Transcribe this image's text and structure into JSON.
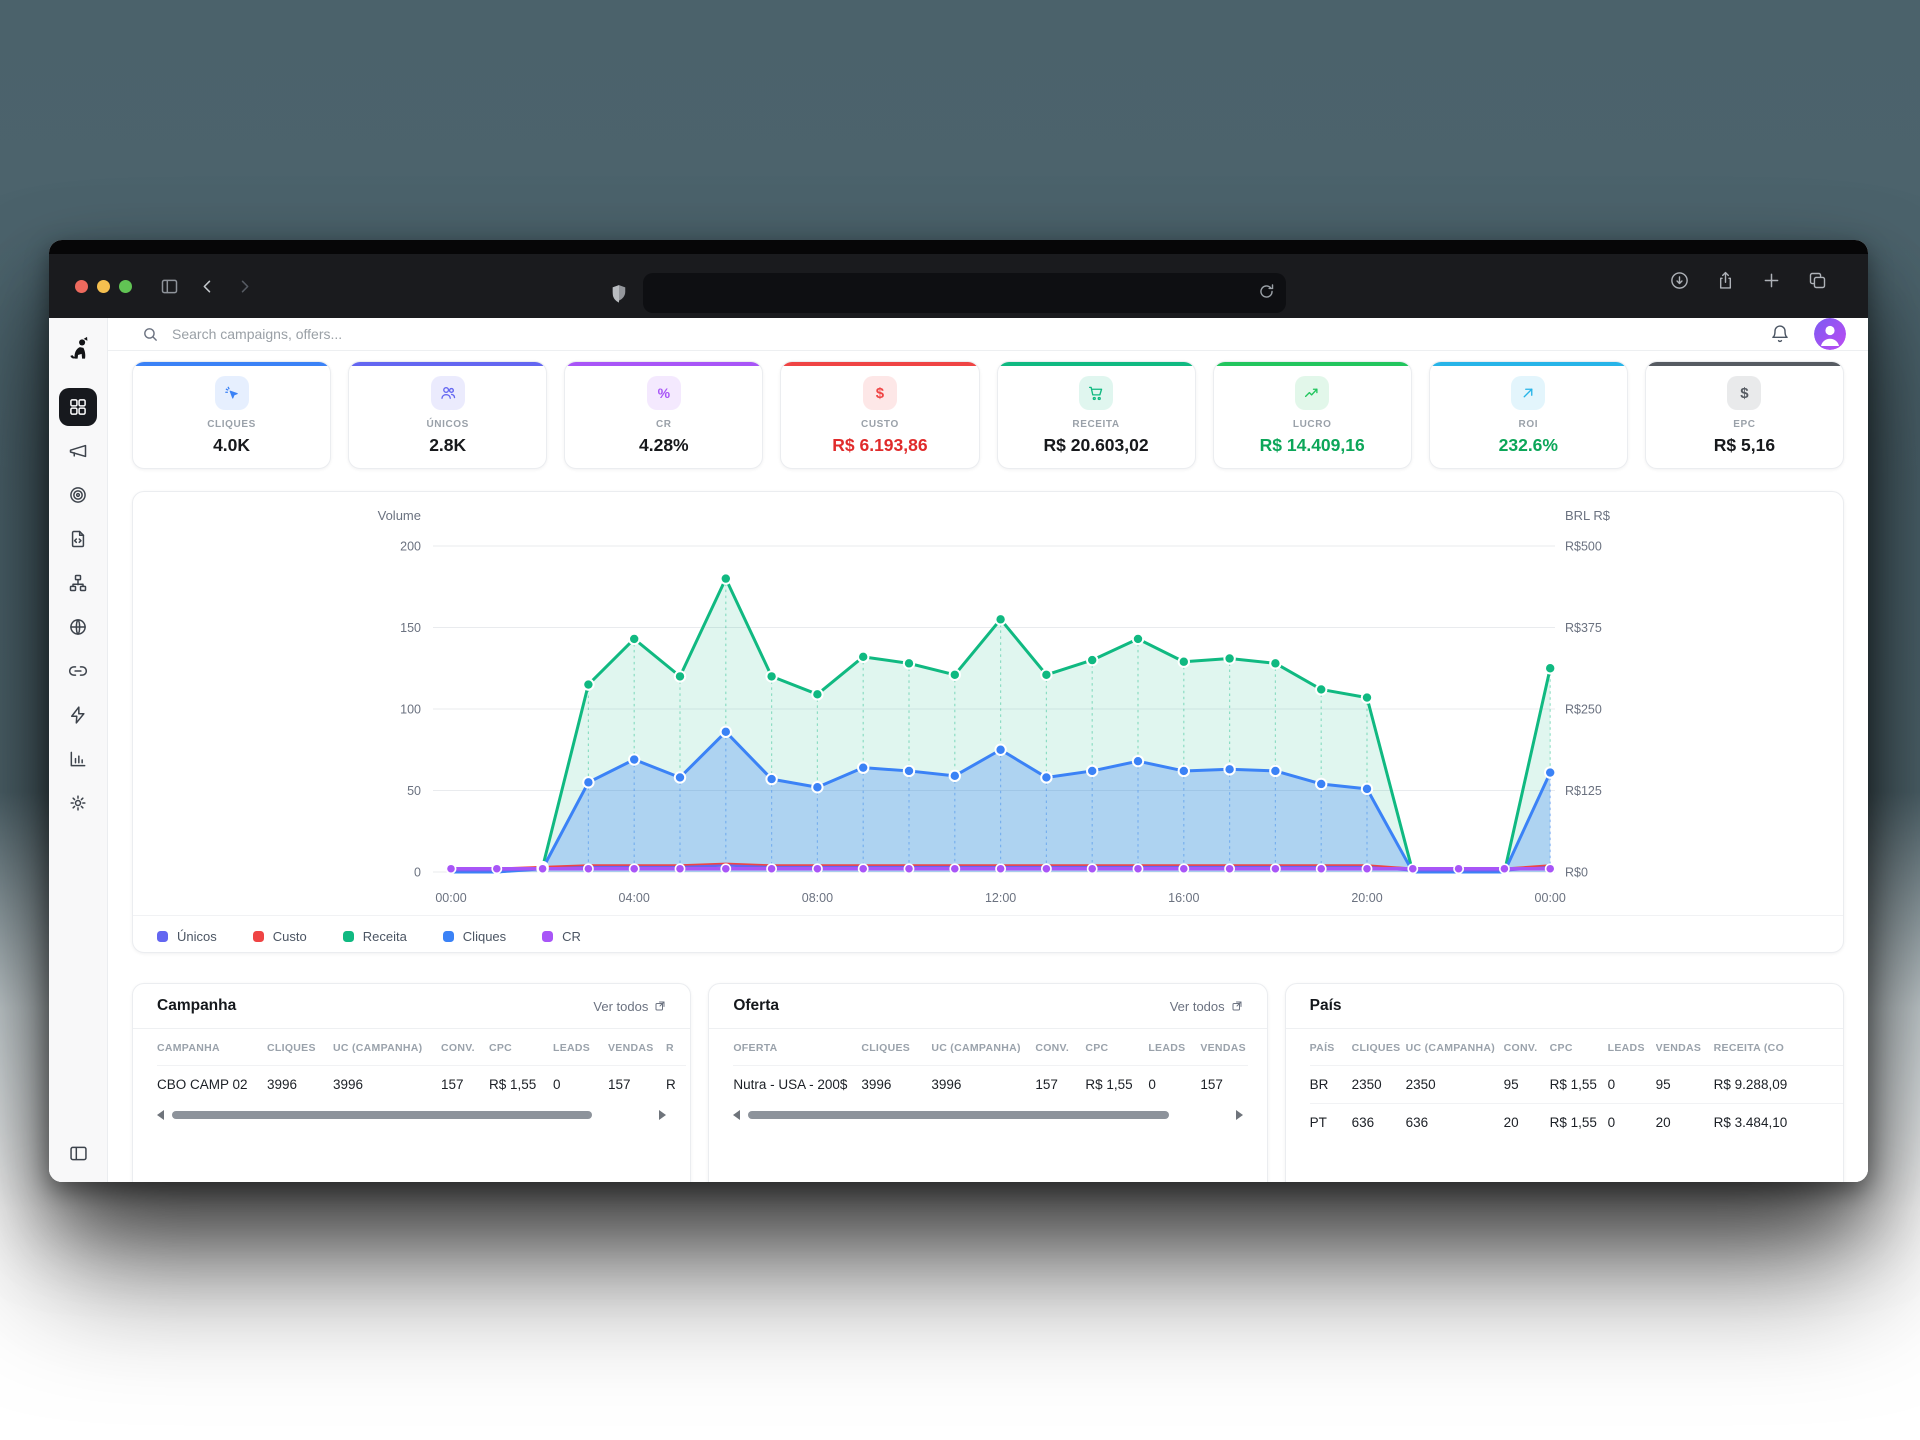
{
  "browser": {
    "address_value": "",
    "left_icons": [
      "sidebar-toggle-icon",
      "back-icon",
      "forward-icon"
    ],
    "address_icons": [
      "shield-icon",
      "reload-icon"
    ],
    "right_icons": [
      "download-icon",
      "share-icon",
      "new-tab-icon",
      "tabs-icon"
    ]
  },
  "topbar": {
    "search_placeholder": "Search campaigns, offers...",
    "icons": [
      "bell-icon",
      "avatar"
    ]
  },
  "sidebar": {
    "logo": "dog-logo",
    "items": [
      {
        "name": "dashboard",
        "icon": "grid-icon",
        "active": true
      },
      {
        "name": "campaigns",
        "icon": "megaphone-icon",
        "active": false
      },
      {
        "name": "offers",
        "icon": "target-icon",
        "active": false
      },
      {
        "name": "landers",
        "icon": "file-code-icon",
        "active": false
      },
      {
        "name": "flows",
        "icon": "sitemap-icon",
        "active": false
      },
      {
        "name": "domains",
        "icon": "globe-icon",
        "active": false
      },
      {
        "name": "links",
        "icon": "link-icon",
        "active": false
      },
      {
        "name": "integrations",
        "icon": "zap-icon",
        "active": false
      },
      {
        "name": "reports",
        "icon": "chart-icon",
        "active": false
      },
      {
        "name": "settings",
        "icon": "gear-icon",
        "active": false
      }
    ],
    "collapse_icon": "panel-left-icon"
  },
  "kpis": [
    {
      "label": "CLIQUES",
      "value": "4.0K",
      "accent": "#3b82f6",
      "value_color": "#17191c",
      "icon": "click-icon"
    },
    {
      "label": "ÚNICOS",
      "value": "2.8K",
      "accent": "#6366f1",
      "value_color": "#17191c",
      "icon": "users-icon"
    },
    {
      "label": "CR",
      "value": "4.28%",
      "accent": "#a855f7",
      "value_color": "#17191c",
      "icon": "percent-icon"
    },
    {
      "label": "CUSTO",
      "value": "R$ 6.193,86",
      "accent": "#ef4444",
      "value_color": "#e02b2b",
      "icon": "dollar-icon"
    },
    {
      "label": "RECEITA",
      "value": "R$ 20.603,02",
      "accent": "#10b981",
      "value_color": "#17191c",
      "icon": "cart-icon"
    },
    {
      "label": "LUCRO",
      "value": "R$ 14.409,16",
      "accent": "#22c55e",
      "value_color": "#0ca659",
      "icon": "trend-up-icon"
    },
    {
      "label": "ROI",
      "value": "232.6%",
      "accent": "#27b4e8",
      "value_color": "#0ca659",
      "icon": "arrow-up-right-icon"
    },
    {
      "label": "EPC",
      "value": "R$ 5,16",
      "accent": "#565b62",
      "value_color": "#17191c",
      "icon": "dollar-icon"
    }
  ],
  "chart_data": {
    "type": "line",
    "left_axis": {
      "title": "Volume",
      "ticks_top_down": [
        200,
        150,
        100,
        50,
        0
      ],
      "max": 200
    },
    "right_axis": {
      "title": "BRL R$",
      "ticks_top_down": [
        "R$500",
        "R$375",
        "R$250",
        "R$125",
        "R$0"
      ]
    },
    "x_tick_labels": [
      "00:00",
      "04:00",
      "08:00",
      "12:00",
      "16:00",
      "20:00",
      "00:00"
    ],
    "x_tick_indices": [
      0,
      4,
      8,
      12,
      16,
      20,
      24
    ],
    "n_points": 25,
    "grid": true,
    "series": [
      {
        "name": "Receita",
        "color": "#10b981",
        "fill": "rgba(16,185,129,0.13)",
        "dots": true,
        "width": 3,
        "values": [
          0,
          0,
          3,
          115,
          143,
          120,
          180,
          120,
          109,
          132,
          128,
          121,
          155,
          121,
          130,
          143,
          129,
          131,
          128,
          112,
          107,
          0,
          0,
          0,
          125
        ]
      },
      {
        "name": "Cliques",
        "color": "#3b82f6",
        "fill": "rgba(59,130,246,0.30)",
        "dots": true,
        "width": 3,
        "values": [
          0,
          0,
          2,
          55,
          69,
          58,
          86,
          57,
          52,
          64,
          62,
          59,
          75,
          58,
          62,
          68,
          62,
          63,
          62,
          54,
          51,
          0,
          0,
          0,
          61
        ]
      },
      {
        "name": "Custo",
        "color": "#ef4444",
        "fill": null,
        "dots": false,
        "width": 2.4,
        "values": [
          2,
          2,
          3,
          4,
          4,
          4,
          5,
          4,
          4,
          4,
          4,
          4,
          4,
          4,
          4,
          4,
          4,
          4,
          4,
          4,
          4,
          2,
          2,
          2,
          4
        ]
      },
      {
        "name": "Únicos",
        "color": "#6366f1",
        "fill": null,
        "dots": false,
        "width": 2.4,
        "values": [
          1,
          1,
          2,
          3,
          3,
          3,
          4,
          3,
          3,
          3,
          3,
          3,
          3,
          3,
          3,
          3,
          3,
          3,
          3,
          3,
          3,
          1,
          1,
          1,
          3
        ]
      },
      {
        "name": "CR",
        "color": "#a855f7",
        "fill": null,
        "dots": true,
        "width": 3.4,
        "values": [
          2,
          2,
          2,
          2,
          2,
          2,
          2,
          2,
          2,
          2,
          2,
          2,
          2,
          2,
          2,
          2,
          2,
          2,
          2,
          2,
          2,
          2,
          2,
          2,
          2
        ]
      }
    ]
  },
  "legend": [
    {
      "label": "Únicos",
      "color": "#6366f1"
    },
    {
      "label": "Custo",
      "color": "#ef4444"
    },
    {
      "label": "Receita",
      "color": "#10b981"
    },
    {
      "label": "Cliques",
      "color": "#3b82f6"
    },
    {
      "label": "CR",
      "color": "#a855f7"
    }
  ],
  "tables": [
    {
      "title": "Campanha",
      "link": "Ver todos",
      "scrollbar": true,
      "headers": [
        "CAMPANHA",
        "CLIQUES",
        "UC (CAMPANHA)",
        "CONV.",
        "CPC",
        "LEADS",
        "VENDAS",
        "R"
      ],
      "rows": [
        [
          "CBO CAMP 02",
          "3996",
          "3996",
          "157",
          "R$ 1,55",
          "0",
          "157",
          "R"
        ]
      ]
    },
    {
      "title": "Oferta",
      "link": "Ver todos",
      "scrollbar": true,
      "headers": [
        "OFERTA",
        "CLIQUES",
        "UC (CAMPANHA)",
        "CONV.",
        "CPC",
        "LEADS",
        "VENDAS"
      ],
      "rows": [
        [
          "Nutra - USA - 200$",
          "3996",
          "3996",
          "157",
          "R$ 1,55",
          "0",
          "157"
        ]
      ]
    },
    {
      "title": "País",
      "link": null,
      "scrollbar": false,
      "headers": [
        "PAÍS",
        "CLIQUES",
        "UC (CAMPANHA)",
        "CONV.",
        "CPC",
        "LEADS",
        "VENDAS",
        "RECEITA (CO"
      ],
      "rows": [
        [
          "BR",
          "2350",
          "2350",
          "95",
          "R$ 1,55",
          "0",
          "95",
          "R$ 9.288,09"
        ],
        [
          "PT",
          "636",
          "636",
          "20",
          "R$ 1,55",
          "0",
          "20",
          "R$ 3.484,10"
        ]
      ]
    }
  ]
}
